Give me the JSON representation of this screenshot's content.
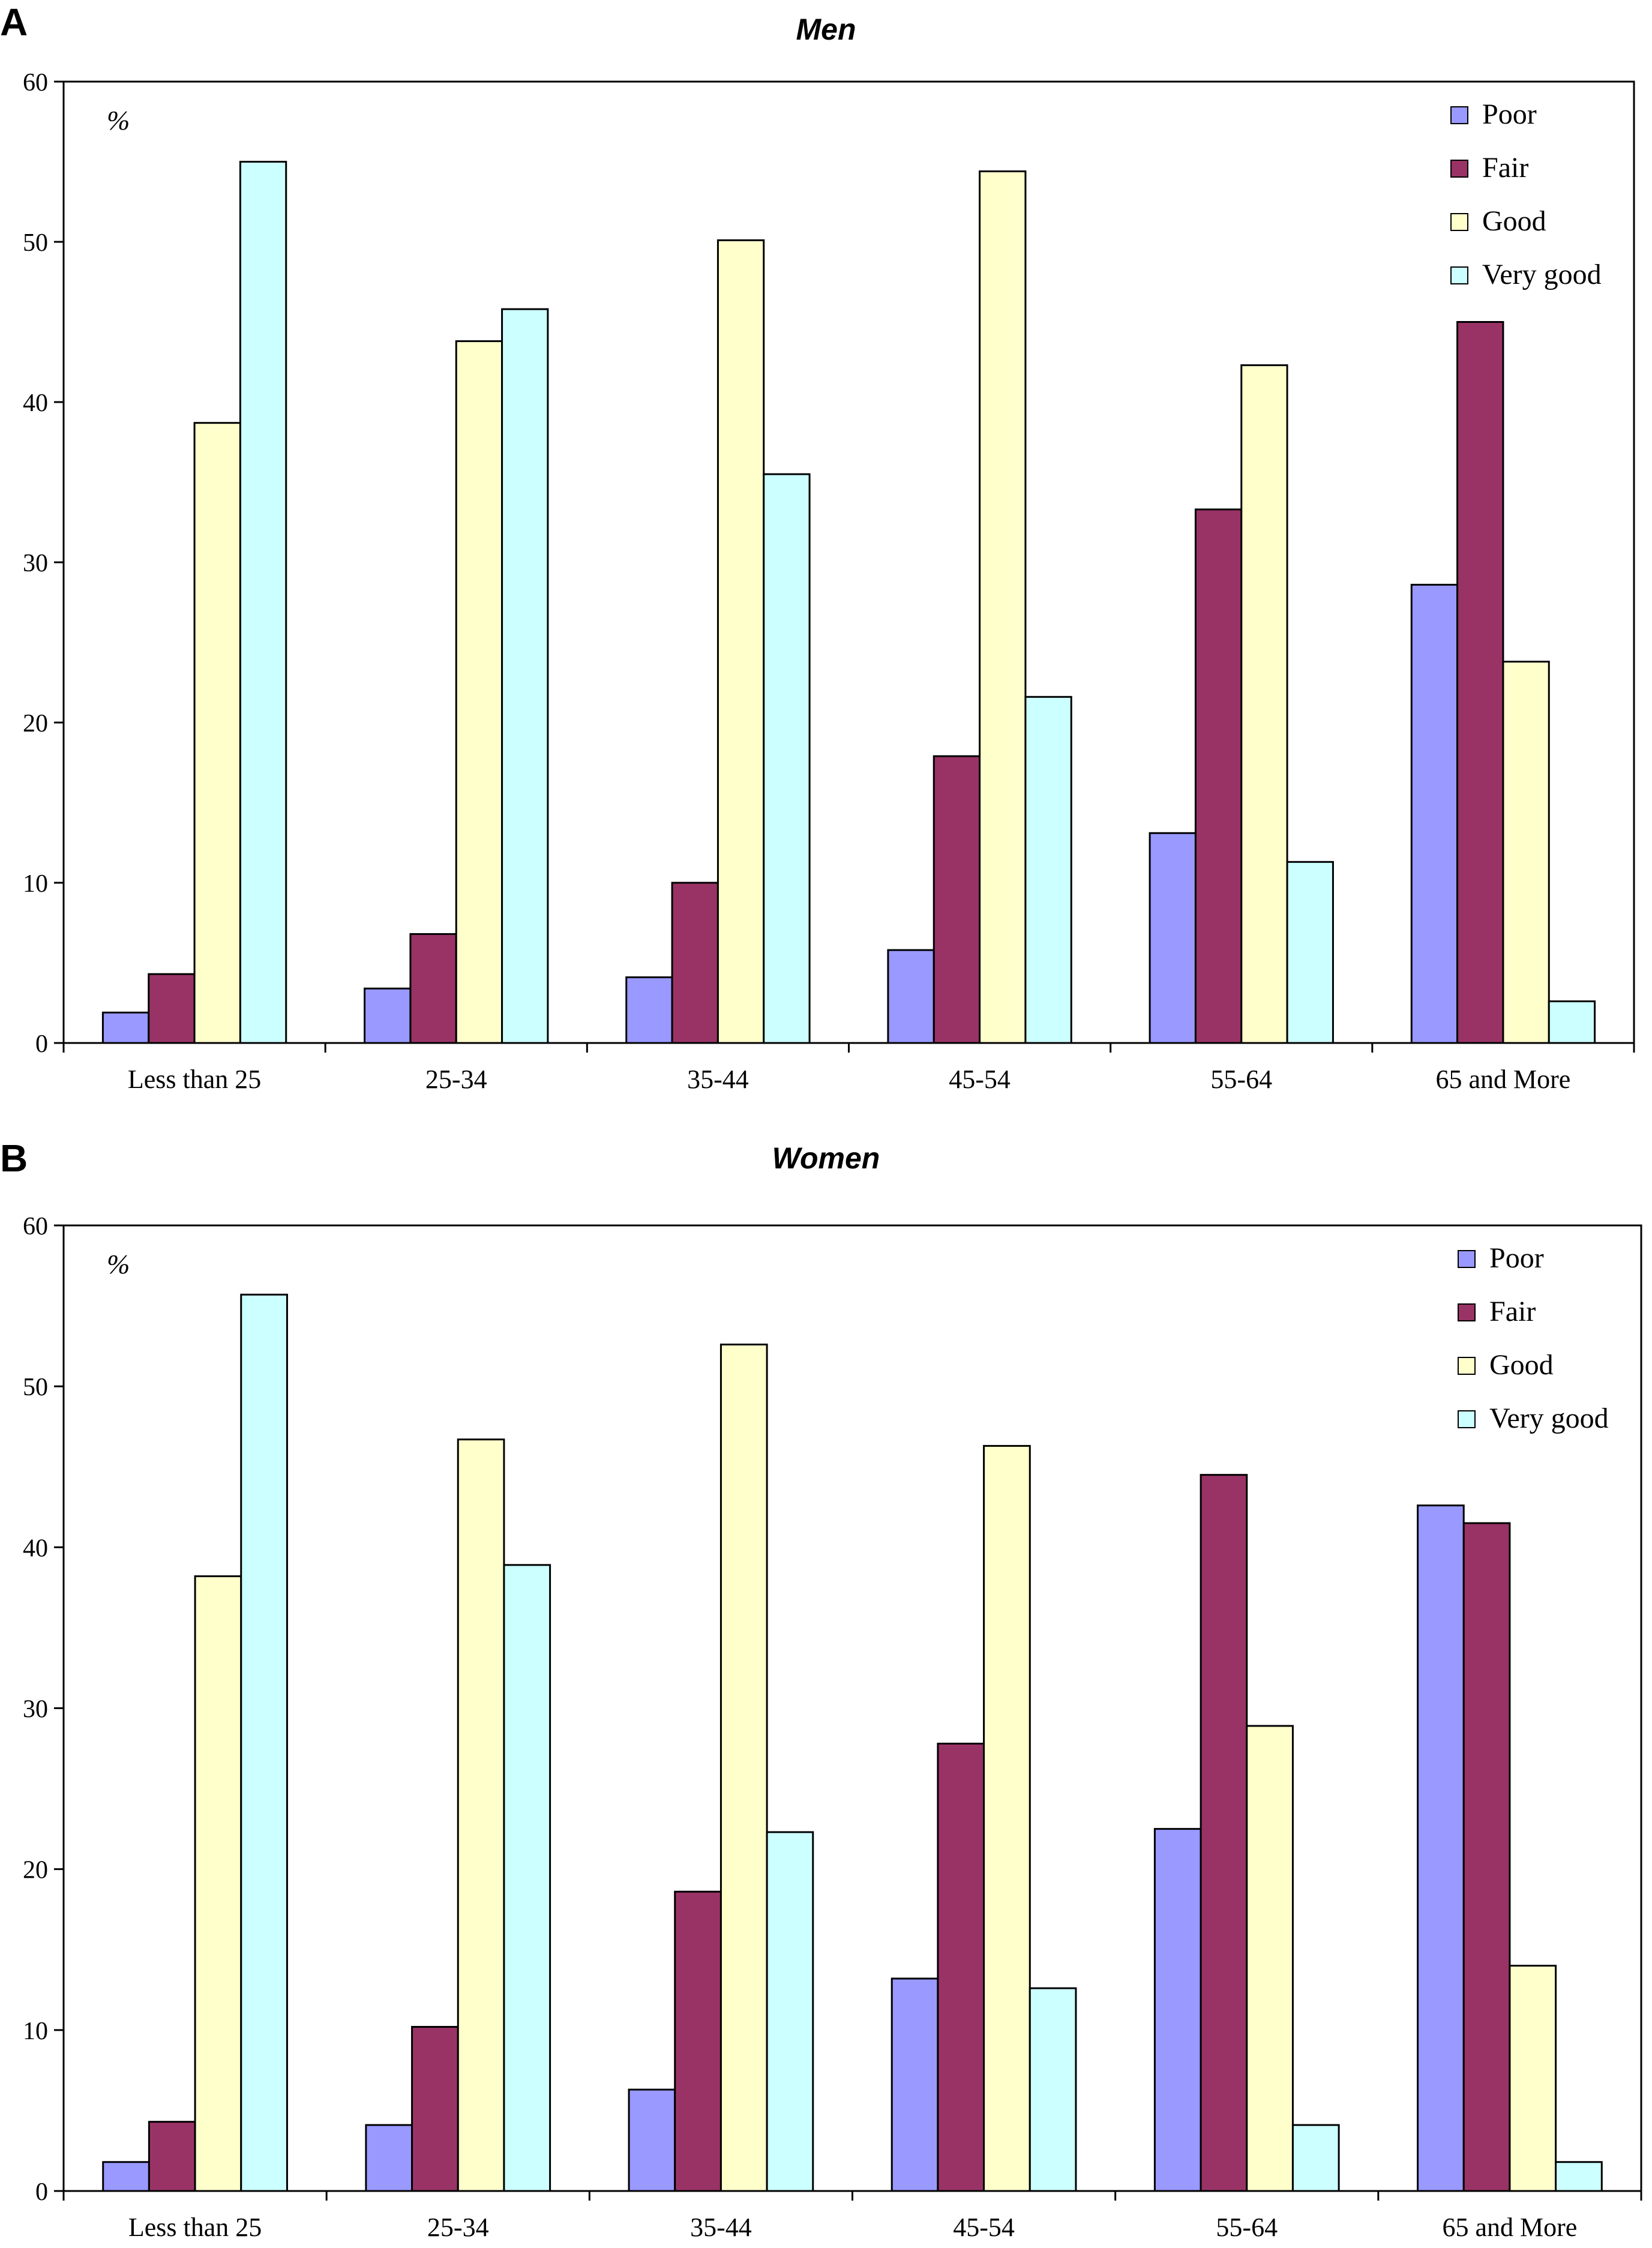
{
  "chart_data": [
    {
      "type": "bar",
      "panel_label": "A",
      "title": "Men",
      "ylabel": "%",
      "ylim": [
        0,
        60
      ],
      "yticks": [
        0,
        10,
        20,
        30,
        40,
        50,
        60
      ],
      "legend_position": "top-right",
      "grid": false,
      "categories": [
        "Less than 25",
        "25-34",
        "35-44",
        "45-54",
        "55-64",
        "65 and More"
      ],
      "series": [
        {
          "name": "Poor",
          "color": "#9999ff",
          "values": [
            1.9,
            3.4,
            4.1,
            5.8,
            13.1,
            28.6
          ]
        },
        {
          "name": "Fair",
          "color": "#993366",
          "values": [
            4.3,
            6.8,
            10.0,
            17.9,
            33.3,
            45.0
          ]
        },
        {
          "name": "Good",
          "color": "#ffffcc",
          "values": [
            38.7,
            43.8,
            50.1,
            54.4,
            42.3,
            23.8
          ]
        },
        {
          "name": "Very good",
          "color": "#ccffff",
          "values": [
            55.0,
            45.8,
            35.5,
            21.6,
            11.3,
            2.6
          ]
        }
      ]
    },
    {
      "type": "bar",
      "panel_label": "B",
      "title": "Women",
      "ylabel": "%",
      "ylim": [
        0,
        60
      ],
      "yticks": [
        0,
        10,
        20,
        30,
        40,
        50,
        60
      ],
      "legend_position": "top-right",
      "grid": false,
      "categories": [
        "Less than 25",
        "25-34",
        "35-44",
        "45-54",
        "55-64",
        "65 and More"
      ],
      "series": [
        {
          "name": "Poor",
          "color": "#9999ff",
          "values": [
            1.8,
            4.1,
            6.3,
            13.2,
            22.5,
            42.6
          ]
        },
        {
          "name": "Fair",
          "color": "#993366",
          "values": [
            4.3,
            10.2,
            18.6,
            27.8,
            44.5,
            41.5
          ]
        },
        {
          "name": "Good",
          "color": "#ffffcc",
          "values": [
            38.2,
            46.7,
            52.6,
            46.3,
            28.9,
            14.0
          ]
        },
        {
          "name": "Very good",
          "color": "#ccffff",
          "values": [
            55.7,
            38.9,
            22.3,
            12.6,
            4.1,
            1.8
          ]
        }
      ]
    }
  ]
}
